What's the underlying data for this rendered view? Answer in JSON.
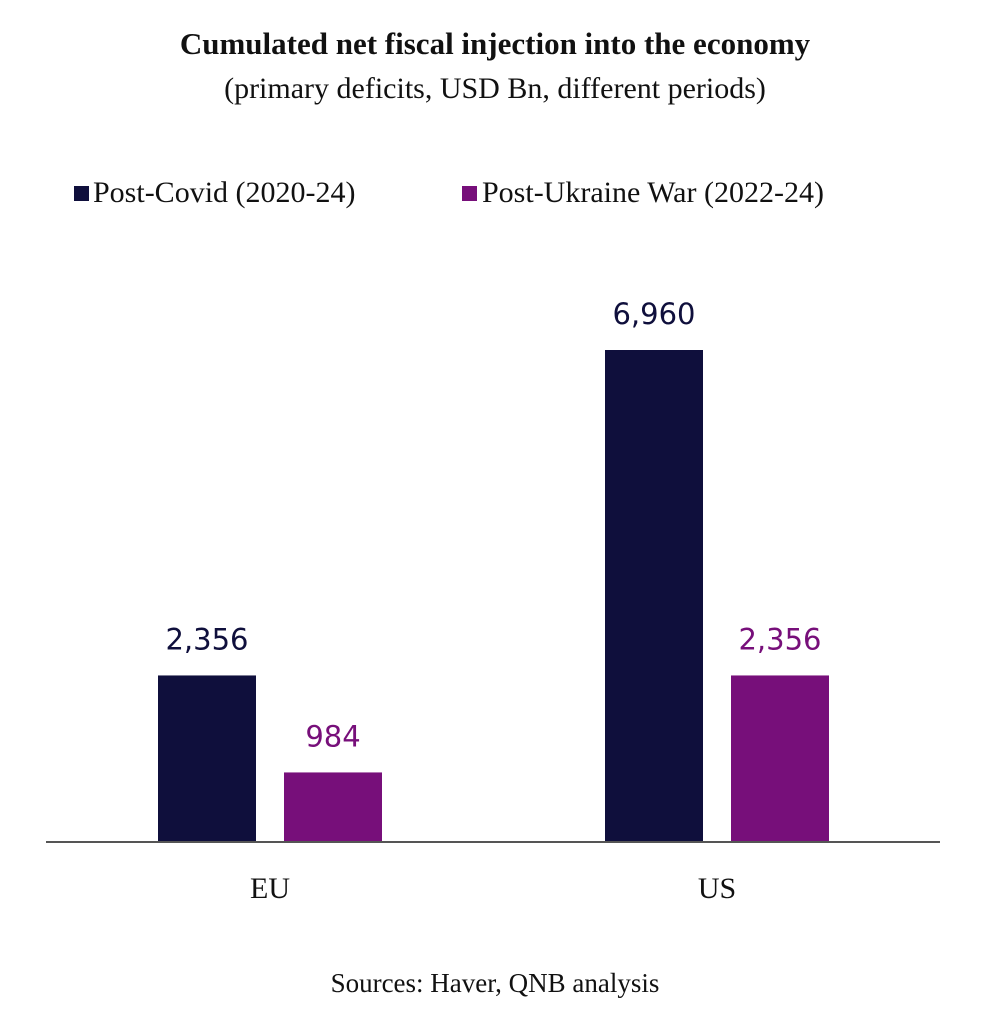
{
  "chart_data": {
    "type": "bar",
    "title": "Cumulated net fiscal injection into the economy",
    "subtitle": "(primary deficits, USD Bn, different periods)",
    "categories": [
      "EU",
      "US"
    ],
    "series": [
      {
        "name": "Post-Covid (2020-24)",
        "values": [
          2356,
          6960
        ],
        "labels": [
          "2,356",
          "6,960"
        ],
        "color": "#0f0f3c"
      },
      {
        "name": "Post-Ukraine War (2022-24)",
        "values": [
          984,
          2356
        ],
        "labels": [
          "984",
          "2,356"
        ],
        "color": "#770f7a"
      }
    ],
    "legend_position": "top",
    "ylim": [
      0,
      8000
    ],
    "grid": false,
    "source": "Sources: Haver, QNB analysis",
    "axis_color": "#555555",
    "text_color": "#111111"
  }
}
